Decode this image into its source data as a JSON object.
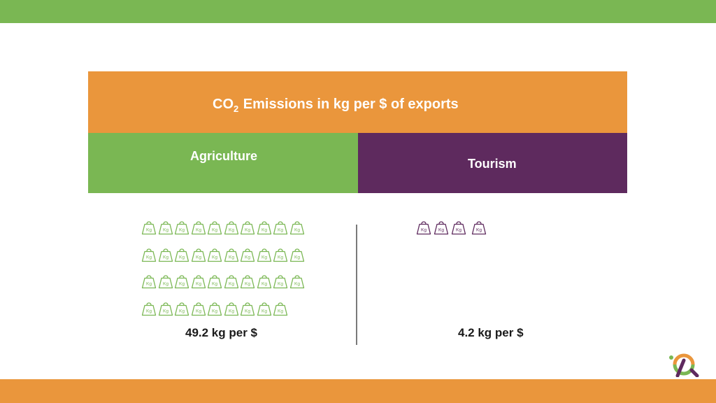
{
  "title": {
    "prefix": "CO",
    "subscript": "2",
    "text": "Emissions in kg per $ of exports"
  },
  "colors": {
    "green": "#7ab753",
    "orange": "#ea963c",
    "purple": "#5e2a5e"
  },
  "weight_icon_label": "Kg",
  "categories": [
    {
      "name": "Agriculture",
      "value_label": "49.2 kg per $",
      "icon_count": 39,
      "icons_per_row": [
        10,
        10,
        10,
        9
      ]
    },
    {
      "name": "Tourism",
      "value_label": "4.2 kg per $",
      "icon_count": 4,
      "icons_per_row": [
        4
      ]
    }
  ]
}
